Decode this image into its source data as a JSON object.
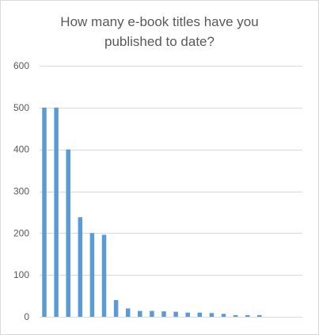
{
  "chart_data": {
    "type": "bar",
    "title": "How many e-book titles have you\npublished to date?",
    "xlabel": "",
    "ylabel": "",
    "ylim": [
      0,
      600
    ],
    "yticks": [
      0,
      100,
      200,
      300,
      400,
      500,
      600
    ],
    "grid": true,
    "legend": "none",
    "bar_color": "#5b9bd5",
    "values": [
      500,
      500,
      400,
      238,
      200,
      196,
      40,
      20,
      14,
      14,
      13,
      12,
      10,
      10,
      9,
      7,
      4,
      4,
      4
    ]
  }
}
